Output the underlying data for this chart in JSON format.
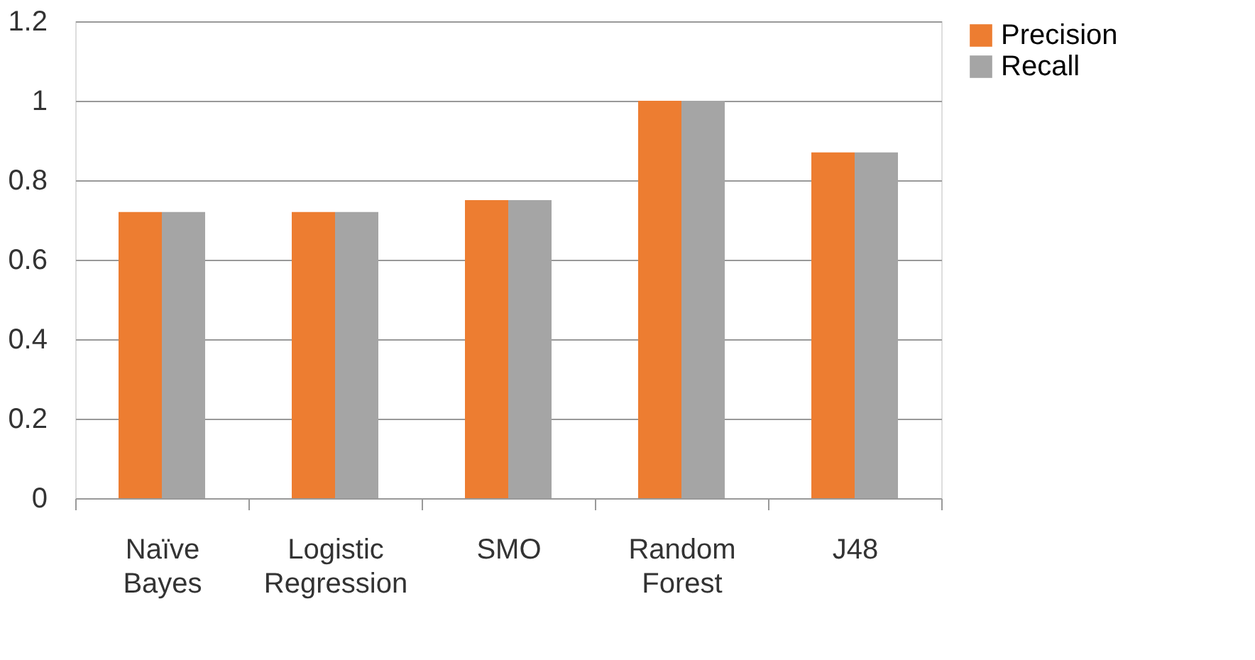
{
  "chart_data": {
    "type": "bar",
    "categories": [
      "Naïve Bayes",
      "Logistic Regression",
      "SMO",
      "Random Forest",
      "J48"
    ],
    "series": [
      {
        "name": "Precision",
        "color": "#ed7d31",
        "values": [
          0.72,
          0.72,
          0.75,
          1.0,
          0.87
        ]
      },
      {
        "name": "Recall",
        "color": "#a5a5a5",
        "values": [
          0.72,
          0.72,
          0.75,
          1.0,
          0.87
        ]
      }
    ],
    "ylim": [
      0,
      1.2
    ],
    "yticks": [
      0,
      0.2,
      0.4,
      0.6,
      0.8,
      1,
      1.2
    ],
    "grid": "y",
    "legend": "right"
  }
}
